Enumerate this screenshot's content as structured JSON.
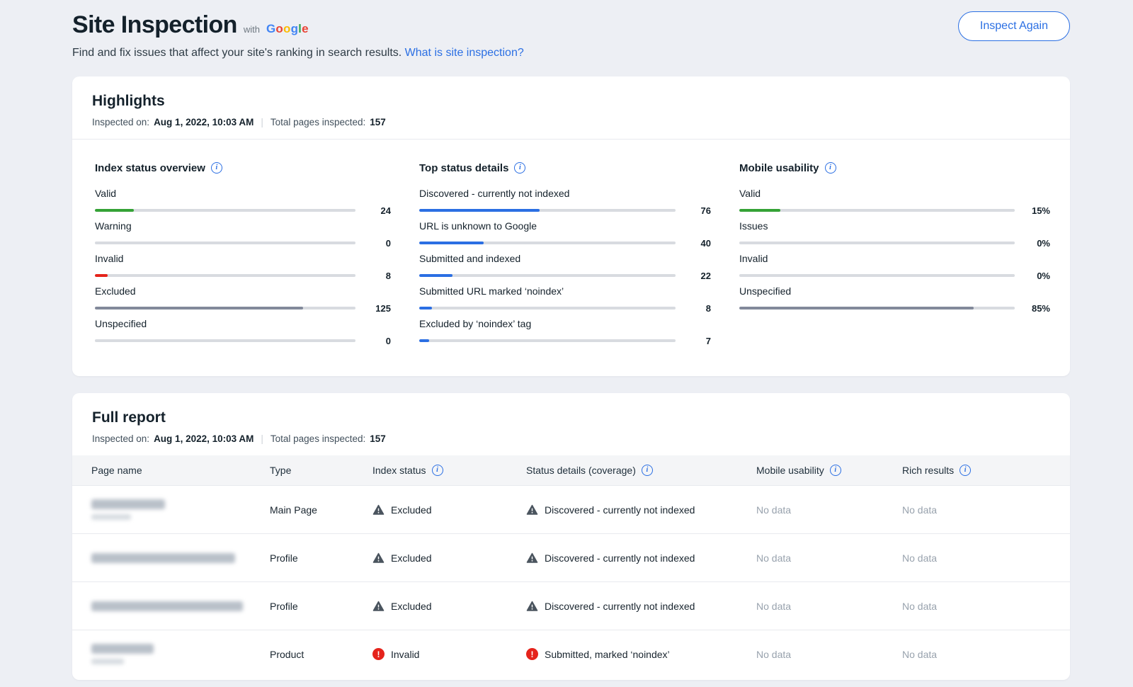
{
  "colors": {
    "accent": "#2b6fe3",
    "success": "#35a236",
    "error": "#e5231b",
    "neutral_fill": "#82899a",
    "track": "#d8dbe0"
  },
  "header": {
    "title": "Site Inspection",
    "with_label": "with",
    "google_letters": [
      "G",
      "o",
      "o",
      "g",
      "l",
      "e"
    ],
    "google_colors": [
      "#4285F4",
      "#EA4335",
      "#FBBC05",
      "#4285F4",
      "#34A853",
      "#EA4335"
    ],
    "subtitle": "Find and fix issues that affect your site's ranking in search results.",
    "subtitle_link": "What is site inspection?",
    "inspect_again_label": "Inspect Again"
  },
  "highlights": {
    "title": "Highlights",
    "inspected_on_label": "Inspected on:",
    "inspected_on_value": "Aug 1, 2022, 10:03 AM",
    "separator": "|",
    "total_pages_label": "Total pages inspected:",
    "total_pages_value": "157"
  },
  "chart_data": [
    {
      "type": "bar",
      "orientation": "horizontal",
      "title": "Index status overview",
      "max": 157,
      "categories": [
        "Valid",
        "Warning",
        "Invalid",
        "Excluded",
        "Unspecified"
      ],
      "values": [
        24,
        0,
        8,
        125,
        0
      ],
      "value_labels": [
        "24",
        "0",
        "8",
        "125",
        "0"
      ],
      "percents": [
        15,
        0,
        5,
        80,
        0
      ],
      "colors": [
        "#35a236",
        "#d8dbe0",
        "#e5231b",
        "#82899a",
        "#d8dbe0"
      ]
    },
    {
      "type": "bar",
      "orientation": "horizontal",
      "title": "Top status details",
      "max": 157,
      "categories": [
        "Discovered - currently not indexed",
        "URL is unknown to Google",
        "Submitted and indexed",
        "Submitted URL marked ‘noindex’",
        "Excluded by ‘noindex’ tag"
      ],
      "values": [
        76,
        40,
        22,
        8,
        7
      ],
      "value_labels": [
        "76",
        "40",
        "22",
        "8",
        "7"
      ],
      "percents": [
        47,
        25,
        13,
        5,
        4
      ],
      "colors": [
        "#2b6fe3",
        "#2b6fe3",
        "#2b6fe3",
        "#2b6fe3",
        "#2b6fe3"
      ]
    },
    {
      "type": "bar",
      "orientation": "horizontal",
      "title": "Mobile usability",
      "max": 100,
      "categories": [
        "Valid",
        "Issues",
        "Invalid",
        "Unspecified"
      ],
      "values": [
        15,
        0,
        0,
        85
      ],
      "value_labels": [
        "15%",
        "0%",
        "0%",
        "85%"
      ],
      "percents": [
        15,
        0,
        0,
        85
      ],
      "colors": [
        "#35a236",
        "#d8dbe0",
        "#d8dbe0",
        "#82899a"
      ]
    }
  ],
  "full_report": {
    "title": "Full report",
    "inspected_on_label": "Inspected on:",
    "inspected_on_value": "Aug 1, 2022, 10:03 AM",
    "separator": "|",
    "total_pages_label": "Total pages inspected:",
    "total_pages_value": "157",
    "columns": [
      {
        "label": "Page name",
        "info": false
      },
      {
        "label": "Type",
        "info": false
      },
      {
        "label": "Index status",
        "info": true
      },
      {
        "label": "Status details (coverage)",
        "info": true
      },
      {
        "label": "Mobile usability",
        "info": true
      },
      {
        "label": "Rich results",
        "info": true
      }
    ],
    "rows": [
      {
        "page_name_redacted": true,
        "page_name_blocks": [
          104,
          56
        ],
        "type": "Main Page",
        "index_status": {
          "severity": "warning",
          "label": "Excluded"
        },
        "status_details": {
          "severity": "warning",
          "label": "Discovered - currently not indexed"
        },
        "mobile_usability": "No data",
        "rich_results": "No data"
      },
      {
        "page_name_redacted": true,
        "page_name_blocks": [
          203
        ],
        "type": "Profile",
        "index_status": {
          "severity": "warning",
          "label": "Excluded"
        },
        "status_details": {
          "severity": "warning",
          "label": "Discovered - currently not indexed"
        },
        "mobile_usability": "No data",
        "rich_results": "No data"
      },
      {
        "page_name_redacted": true,
        "page_name_blocks": [
          214
        ],
        "type": "Profile",
        "index_status": {
          "severity": "warning",
          "label": "Excluded"
        },
        "status_details": {
          "severity": "warning",
          "label": "Discovered - currently not indexed"
        },
        "mobile_usability": "No data",
        "rich_results": "No data"
      },
      {
        "page_name_redacted": true,
        "page_name_blocks": [
          88,
          46
        ],
        "type": "Product",
        "index_status": {
          "severity": "error",
          "label": "Invalid"
        },
        "status_details": {
          "severity": "error",
          "label": "Submitted, marked ‘noindex’"
        },
        "mobile_usability": "No data",
        "rich_results": "No data"
      }
    ]
  }
}
